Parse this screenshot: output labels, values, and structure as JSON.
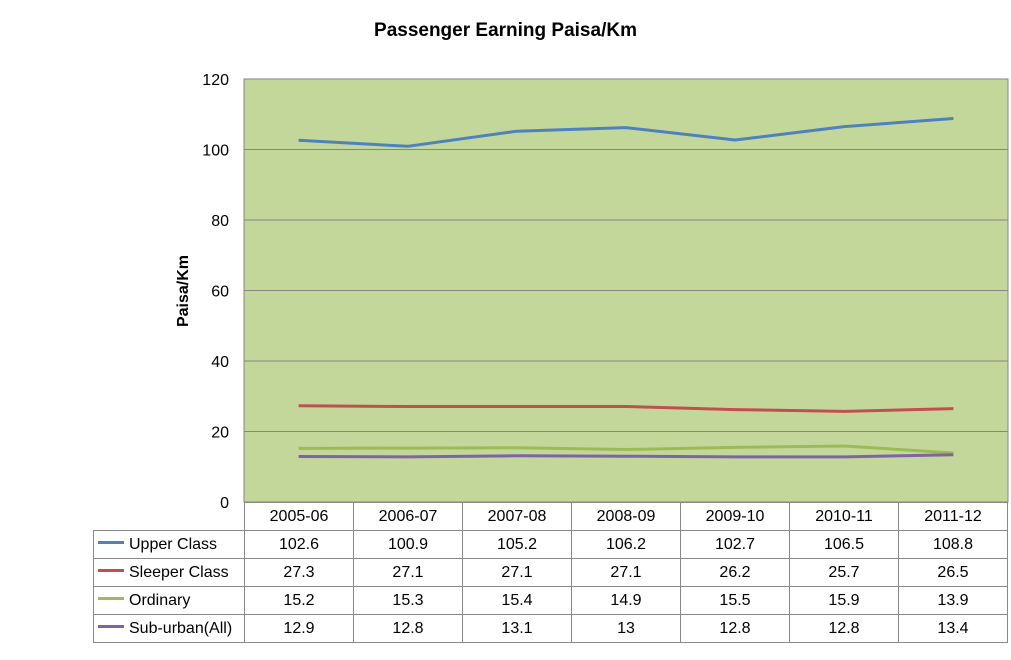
{
  "chart_data": {
    "type": "line",
    "title": "Passenger Earning Paisa/Km",
    "ylabel": "Paisa/Km",
    "xlabel": "",
    "categories": [
      "2005-06",
      "2006-07",
      "2007-08",
      "2008-09",
      "2009-10",
      "2010-11",
      "2011-12"
    ],
    "ylim": [
      0,
      120
    ],
    "yticks": [
      "0",
      "20",
      "40",
      "60",
      "80",
      "100",
      "120"
    ],
    "grid": true,
    "plot_background": "#c4d79b",
    "legend_placement": "data table below plot",
    "series": [
      {
        "name": "Upper Class",
        "color": "#4f81bd",
        "values": [
          102.6,
          100.9,
          105.2,
          106.2,
          102.7,
          106.5,
          108.8
        ],
        "labels": [
          "102.6",
          "100.9",
          "105.2",
          "106.2",
          "102.7",
          "106.5",
          "108.8"
        ]
      },
      {
        "name": "Sleeper Class",
        "color": "#c0504d",
        "values": [
          27.3,
          27.1,
          27.1,
          27.1,
          26.2,
          25.7,
          26.5
        ],
        "labels": [
          "27.3",
          "27.1",
          "27.1",
          "27.1",
          "26.2",
          "25.7",
          "26.5"
        ]
      },
      {
        "name": "Ordinary",
        "color": "#9bbb59",
        "values": [
          15.2,
          15.3,
          15.4,
          14.9,
          15.5,
          15.9,
          13.9
        ],
        "labels": [
          "15.2",
          "15.3",
          "15.4",
          "14.9",
          "15.5",
          "15.9",
          "13.9"
        ]
      },
      {
        "name": "Sub-urban(All)",
        "color": "#8064a2",
        "values": [
          12.9,
          12.8,
          13.1,
          13,
          12.8,
          12.8,
          13.4
        ],
        "labels": [
          "12.9",
          "12.8",
          "13.1",
          "13",
          "12.8",
          "12.8",
          "13.4"
        ]
      }
    ]
  }
}
